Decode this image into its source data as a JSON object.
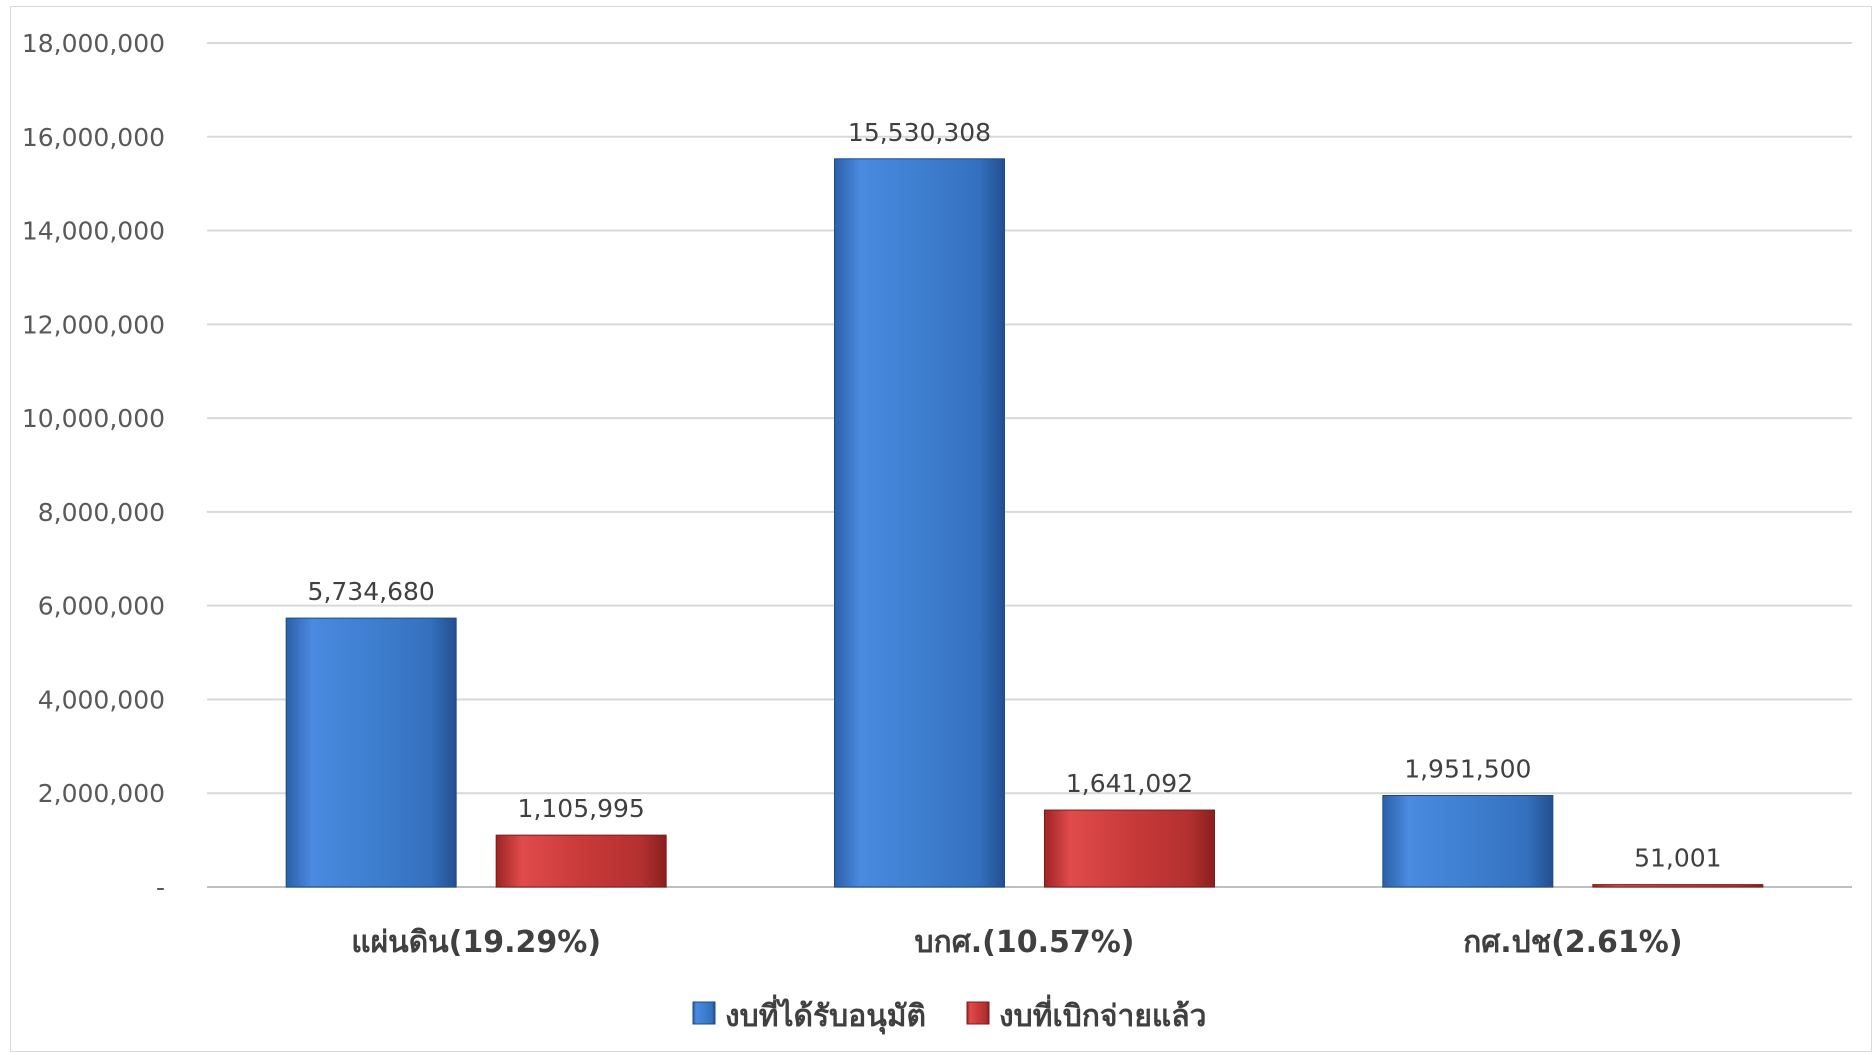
{
  "chart_data": {
    "type": "bar",
    "categories": [
      "แผ่นดิน(19.29%)",
      "บกศ.(10.57%)",
      "กศ.ปช(2.61%)"
    ],
    "series": [
      {
        "name": "งบที่ได้รับอนุมัติ",
        "values": [
          5734680,
          15530308,
          1951500
        ],
        "labels": [
          "5,734,680",
          "15,530,308",
          "1,951,500"
        ],
        "color": "#3f7fd0"
      },
      {
        "name": "งบที่เบิกจ่ายแล้ว",
        "values": [
          1105995,
          1641092,
          51001
        ],
        "labels": [
          "1,105,995",
          "1,641,092",
          "51,001"
        ],
        "color": "#c93a3a"
      }
    ],
    "ylim": [
      0,
      18000000
    ],
    "yticks": [
      0,
      2000000,
      4000000,
      6000000,
      8000000,
      10000000,
      12000000,
      14000000,
      16000000,
      18000000
    ],
    "ytick_labels": [
      "-",
      "2,000,000",
      "4,000,000",
      "6,000,000",
      "8,000,000",
      "10,000,000",
      "12,000,000",
      "14,000,000",
      "16,000,000",
      "18,000,000"
    ],
    "grid": true,
    "legend_position": "bottom"
  }
}
